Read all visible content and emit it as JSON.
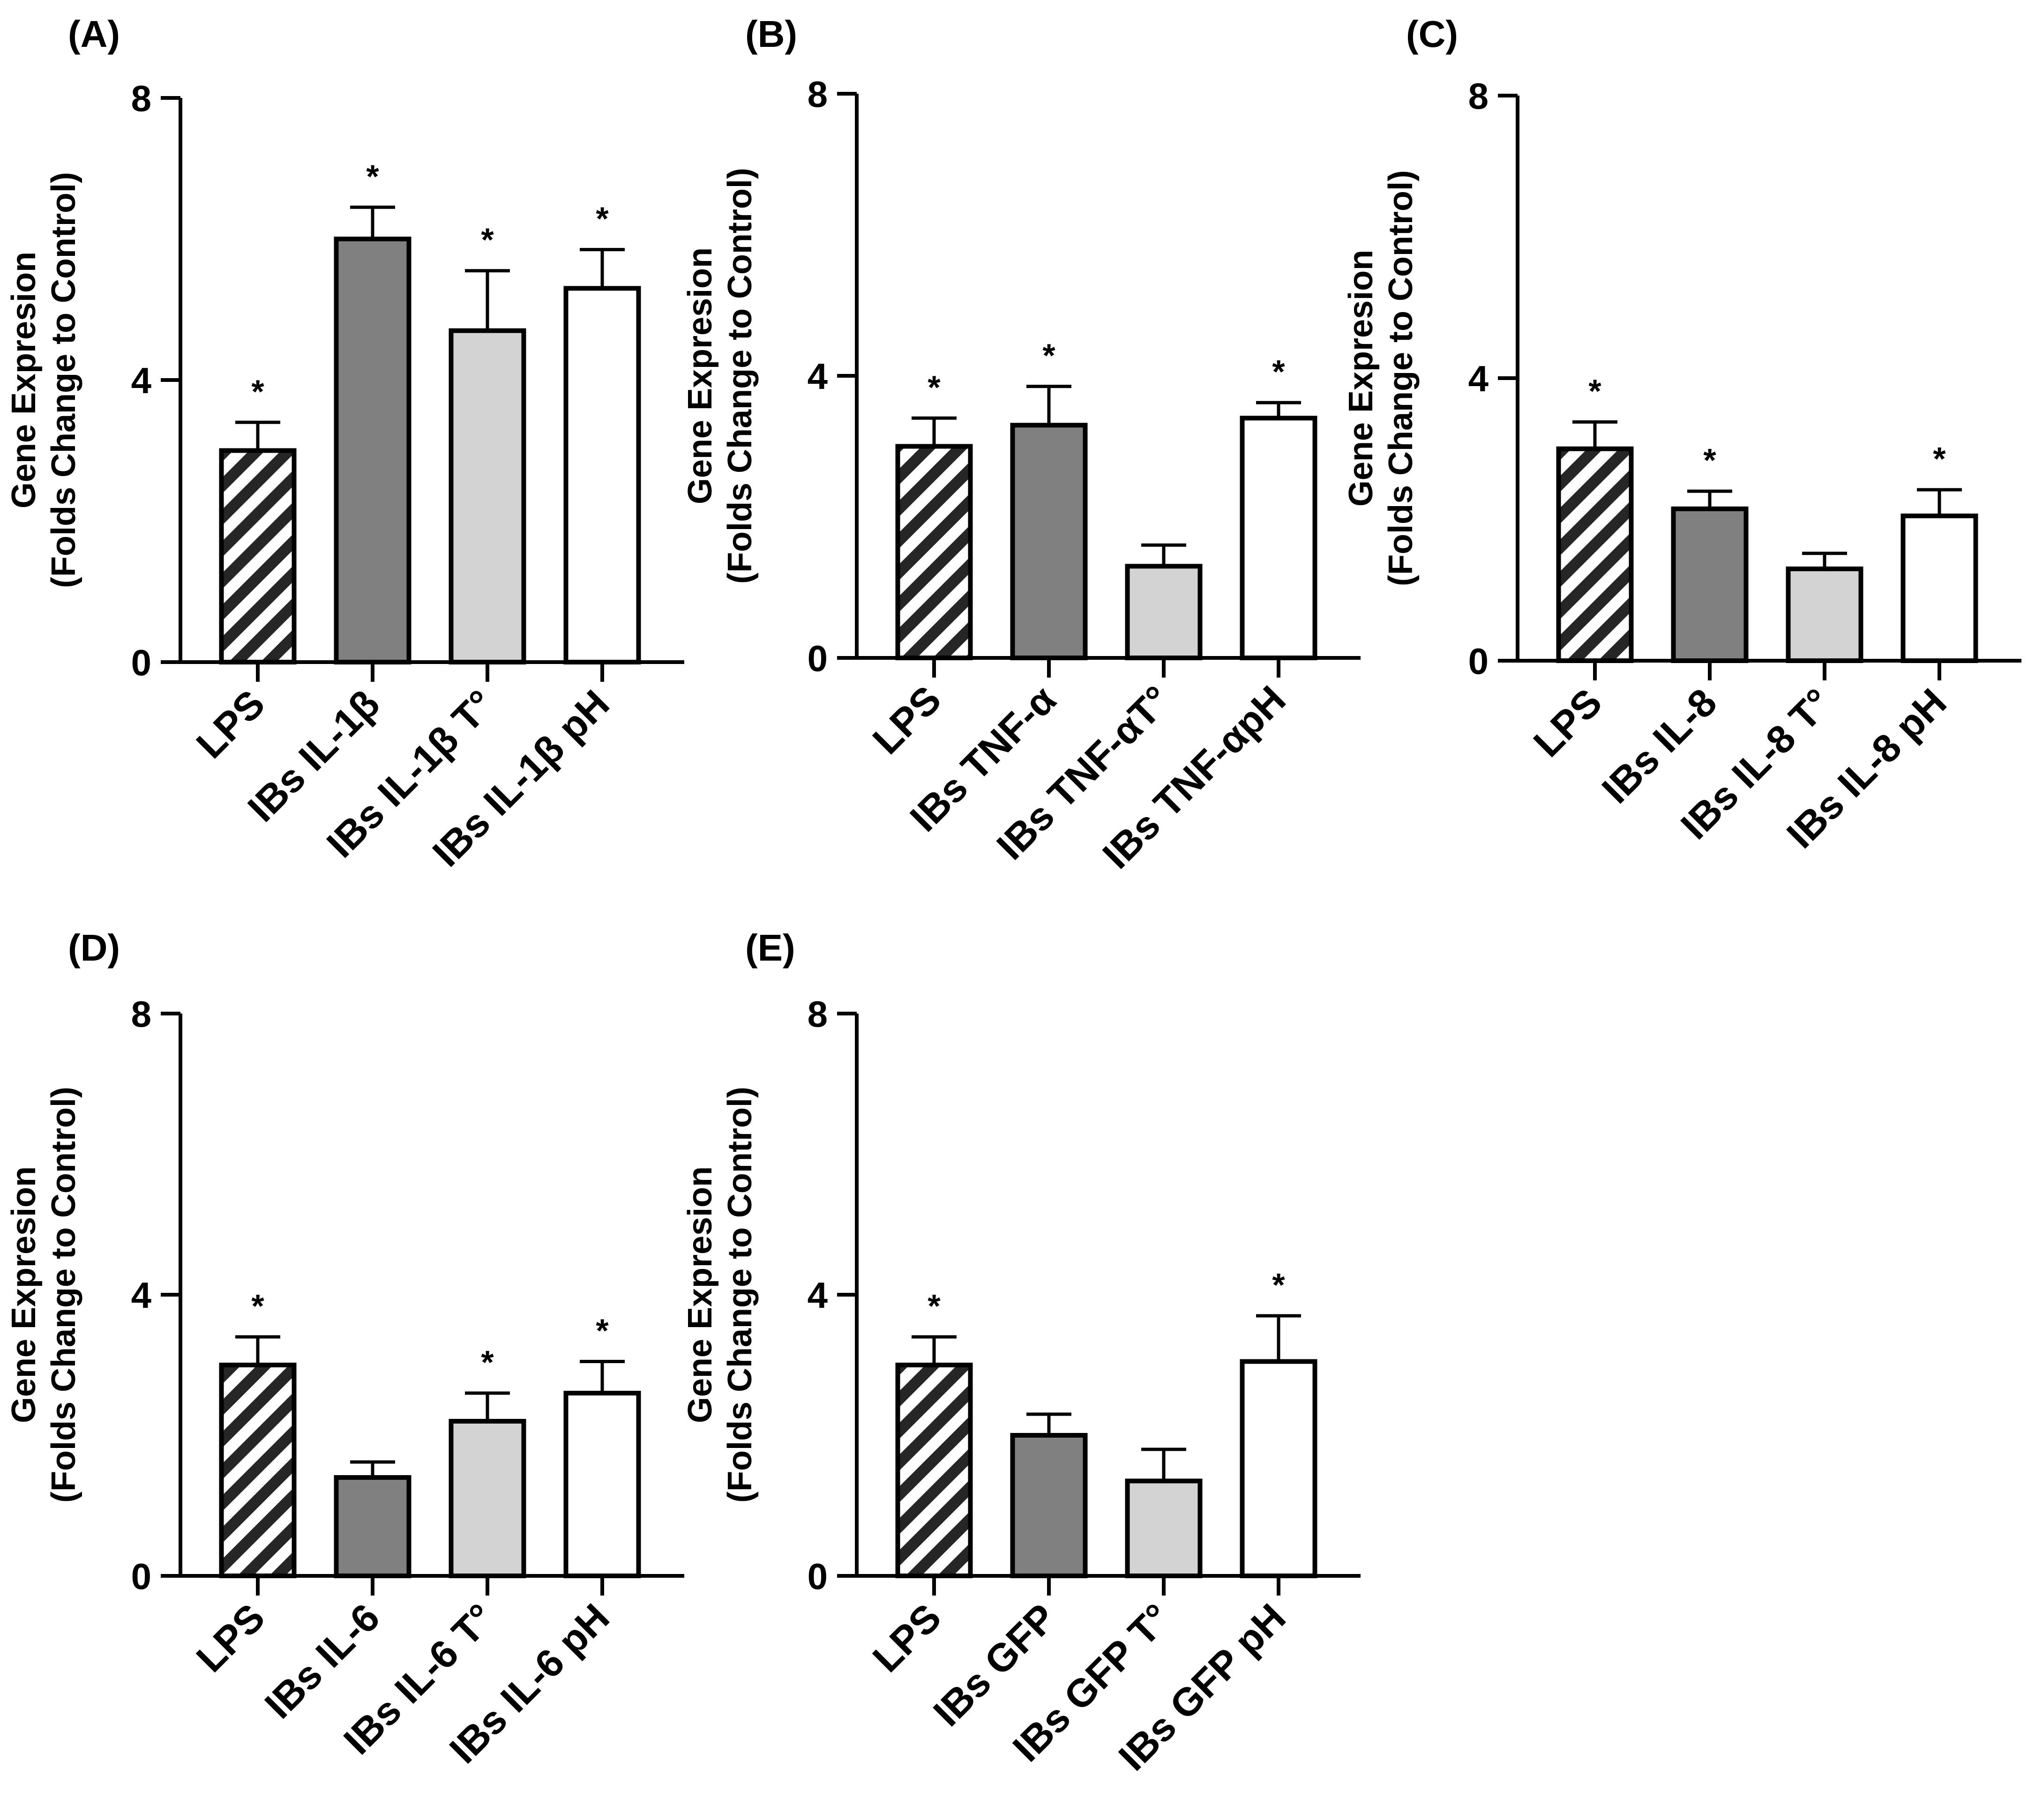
{
  "chart_data": [
    {
      "type": "bar",
      "panel": "(A)",
      "title": "",
      "ylabel": [
        "Gene Expresion",
        "(Folds Change to Control)"
      ],
      "ylim": [
        0,
        8
      ],
      "yticks": [
        0,
        4,
        8
      ],
      "categories": [
        "LPS",
        "IBs IL-1β",
        "IBs IL-1β T°",
        "IBs IL-1β pH"
      ],
      "values": [
        3.0,
        6.0,
        4.7,
        5.3
      ],
      "errors": [
        0.4,
        0.45,
        0.85,
        0.55
      ],
      "significance": [
        "*",
        "*",
        "*",
        "*"
      ],
      "fills": [
        "hatch",
        "#808080",
        "#d3d3d3",
        "#ffffff"
      ]
    },
    {
      "type": "bar",
      "panel": "(B)",
      "title": "",
      "ylabel": [
        "Gene Expresion",
        "(Folds Change to Control)"
      ],
      "ylim": [
        0,
        8
      ],
      "yticks": [
        0,
        4,
        8
      ],
      "categories": [
        "LPS",
        "IBs TNF-α",
        "IBs TNF-αT°",
        "IBs TNF-αpH"
      ],
      "values": [
        3.0,
        3.3,
        1.3,
        3.4
      ],
      "errors": [
        0.4,
        0.55,
        0.3,
        0.22
      ],
      "significance": [
        "*",
        "*",
        "",
        "*"
      ],
      "fills": [
        "hatch",
        "#808080",
        "#d3d3d3",
        "#ffffff"
      ]
    },
    {
      "type": "bar",
      "panel": "(C)",
      "title": "",
      "ylabel": [
        "Gene Expresion",
        "(Folds Change to Control)"
      ],
      "ylim": [
        0,
        8
      ],
      "yticks": [
        0,
        4,
        8
      ],
      "categories": [
        "LPS",
        "IBs IL-8",
        "IBs IL-8 T°",
        "IBs IL-8 pH"
      ],
      "values": [
        3.0,
        2.15,
        1.3,
        2.05
      ],
      "errors": [
        0.38,
        0.25,
        0.22,
        0.37
      ],
      "significance": [
        "*",
        "*",
        "",
        "*"
      ],
      "fills": [
        "hatch",
        "#808080",
        "#d3d3d3",
        "#ffffff"
      ]
    },
    {
      "type": "bar",
      "panel": "(D)",
      "title": "",
      "ylabel": [
        "Gene Expresion",
        "(Folds Change to Control)"
      ],
      "ylim": [
        0,
        8
      ],
      "yticks": [
        0,
        4,
        8
      ],
      "categories": [
        "LPS",
        "IBs IL-6",
        "IBs IL-6 T°",
        "IBs IL-6 pH"
      ],
      "values": [
        3.0,
        1.4,
        2.2,
        2.6
      ],
      "errors": [
        0.4,
        0.22,
        0.4,
        0.45
      ],
      "significance": [
        "*",
        "",
        "*",
        "*"
      ],
      "fills": [
        "hatch",
        "#808080",
        "#d3d3d3",
        "#ffffff"
      ]
    },
    {
      "type": "bar",
      "panel": "(E)",
      "title": "",
      "ylabel": [
        "Gene Expresion",
        "(Folds Change to Control)"
      ],
      "ylim": [
        0,
        8
      ],
      "yticks": [
        0,
        4,
        8
      ],
      "categories": [
        "LPS",
        "IBs GFP",
        "IBs GFP T°",
        "IBs GFP pH"
      ],
      "values": [
        3.0,
        2.0,
        1.35,
        3.05
      ],
      "errors": [
        0.4,
        0.3,
        0.45,
        0.65
      ],
      "significance": [
        "*",
        "",
        "",
        "*"
      ],
      "fills": [
        "hatch",
        "#808080",
        "#d3d3d3",
        "#ffffff"
      ]
    }
  ]
}
